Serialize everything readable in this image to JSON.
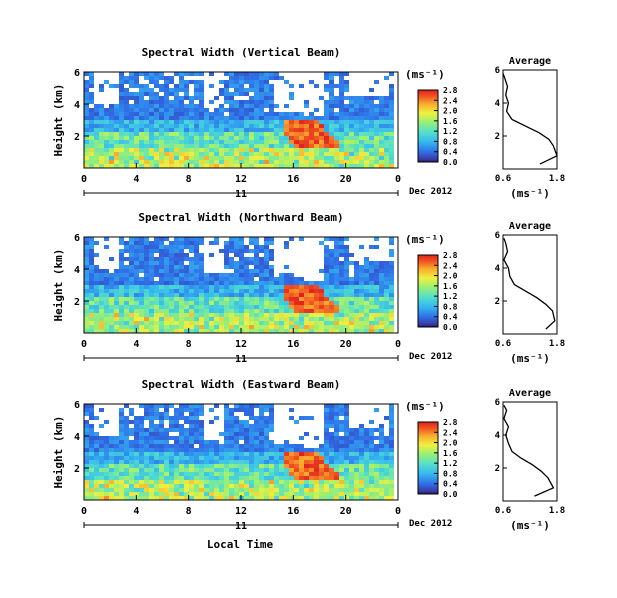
{
  "figure": {
    "xlabel": "Local Time",
    "date_label": "Dec 2012",
    "day_label": "11",
    "ylabel": "Height (km)",
    "unit": "(ms⁻¹)",
    "average_title": "Average"
  },
  "chart_data": [
    {
      "type": "heatmap",
      "title": "Spectral Width (Vertical Beam)",
      "xlabel": "Local Time",
      "ylabel": "Height (km)",
      "x_ticks": [
        "0",
        "4",
        "8",
        "12",
        "16",
        "20",
        "0"
      ],
      "xlim": [
        0,
        24
      ],
      "y_ticks": [
        "2",
        "4",
        "6"
      ],
      "ylim": [
        0,
        6
      ],
      "colorbar": {
        "label": "(ms⁻¹)",
        "ticks": [
          "0.0",
          "0.4",
          "0.8",
          "1.2",
          "1.6",
          "2.0",
          "2.4",
          "2.8"
        ],
        "range": [
          0,
          2.8
        ]
      },
      "grid": false
    },
    {
      "type": "line",
      "title": "Average",
      "xlabel": "(ms⁻¹)",
      "x_ticks": [
        "0.6",
        "1.8"
      ],
      "xlim": [
        0.6,
        1.8
      ],
      "y_ticks": [
        "2",
        "4",
        "6"
      ],
      "ylim": [
        0,
        6
      ],
      "series": [
        {
          "x": [
            1.42,
            1.8,
            1.72,
            1.62,
            1.4,
            1.1,
            0.8,
            0.68,
            0.72,
            0.66,
            0.7,
            0.64,
            0.6
          ],
          "y": [
            0.3,
            0.8,
            1.4,
            1.8,
            2.2,
            2.6,
            3.0,
            3.5,
            4.0,
            4.5,
            5.0,
            5.5,
            5.8
          ]
        }
      ]
    },
    {
      "type": "heatmap",
      "title": "Spectral Width (Northward Beam)",
      "xlabel": "Local Time",
      "ylabel": "Height (km)",
      "x_ticks": [
        "0",
        "4",
        "8",
        "12",
        "16",
        "20",
        "0"
      ],
      "xlim": [
        0,
        24
      ],
      "y_ticks": [
        "2",
        "4",
        "6"
      ],
      "ylim": [
        0,
        6
      ],
      "colorbar": {
        "label": "(ms⁻¹)",
        "ticks": [
          "0.0",
          "0.4",
          "0.8",
          "1.2",
          "1.6",
          "2.0",
          "2.4",
          "2.8"
        ],
        "range": [
          0,
          2.8
        ]
      },
      "grid": false
    },
    {
      "type": "line",
      "title": "Average",
      "xlabel": "(ms⁻¹)",
      "x_ticks": [
        "0.6",
        "1.8"
      ],
      "xlim": [
        0.6,
        1.8
      ],
      "y_ticks": [
        "2",
        "4",
        "6"
      ],
      "ylim": [
        0,
        6
      ],
      "series": [
        {
          "x": [
            1.55,
            1.75,
            1.7,
            1.55,
            1.35,
            1.1,
            0.85,
            0.75,
            0.72,
            0.62,
            0.7,
            0.66,
            0.62
          ],
          "y": [
            0.3,
            0.8,
            1.4,
            1.8,
            2.2,
            2.6,
            3.0,
            3.5,
            4.0,
            4.5,
            5.0,
            5.5,
            5.8
          ]
        }
      ]
    },
    {
      "type": "heatmap",
      "title": "Spectral Width (Eastward Beam)",
      "xlabel": "Local Time",
      "ylabel": "Height (km)",
      "x_ticks": [
        "0",
        "4",
        "8",
        "12",
        "16",
        "20",
        "0"
      ],
      "xlim": [
        0,
        24
      ],
      "y_ticks": [
        "2",
        "4",
        "6"
      ],
      "ylim": [
        0,
        6
      ],
      "colorbar": {
        "label": "(ms⁻¹)",
        "ticks": [
          "0.0",
          "0.4",
          "0.8",
          "1.2",
          "1.6",
          "2.0",
          "2.4",
          "2.8"
        ],
        "range": [
          0,
          2.8
        ]
      },
      "grid": false
    },
    {
      "type": "line",
      "title": "Average",
      "xlabel": "(ms⁻¹)",
      "x_ticks": [
        "0.6",
        "1.8"
      ],
      "xlim": [
        0.6,
        1.8
      ],
      "y_ticks": [
        "2",
        "4",
        "6"
      ],
      "ylim": [
        0,
        6
      ],
      "series": [
        {
          "x": [
            1.3,
            1.72,
            1.6,
            1.45,
            1.25,
            1.0,
            0.8,
            0.72,
            0.66,
            0.72,
            0.62,
            0.68,
            0.62
          ],
          "y": [
            0.3,
            0.8,
            1.4,
            1.8,
            2.2,
            2.6,
            3.0,
            3.5,
            4.0,
            4.5,
            5.0,
            5.5,
            5.8
          ]
        }
      ]
    }
  ]
}
